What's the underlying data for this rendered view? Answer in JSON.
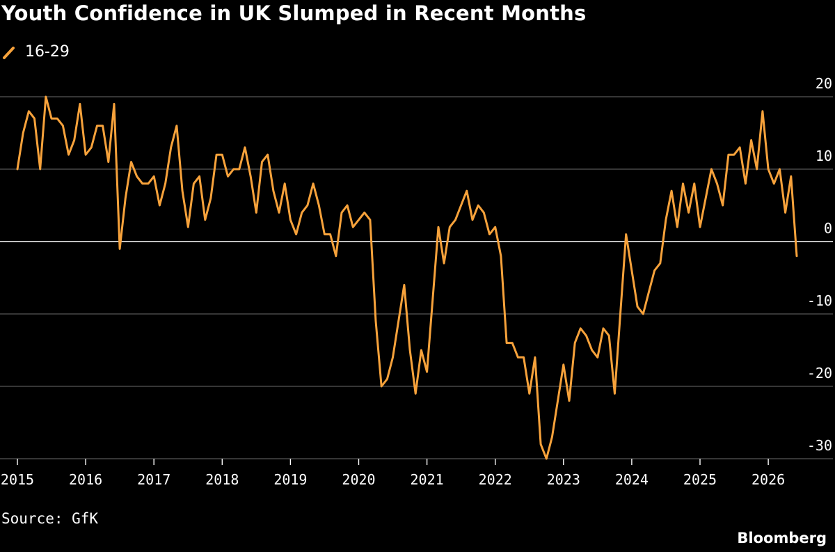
{
  "chart_data": {
    "type": "line",
    "title": "Youth Confidence in UK Slumped in Recent Months",
    "xlabel": "",
    "ylabel": "",
    "ylim": [
      -30,
      20
    ],
    "xlim": [
      2015,
      2026.75
    ],
    "y_ticks": [
      "20",
      "10",
      "0",
      "-10",
      "-20",
      "-30"
    ],
    "x_ticks": [
      "2015",
      "2016",
      "2017",
      "2018",
      "2019",
      "2020",
      "2021",
      "2022",
      "2023",
      "2024",
      "2025",
      "2026"
    ],
    "grid": true,
    "legend_position": "top-left",
    "line_color": "#f7a23b",
    "series": [
      {
        "name": "16-29",
        "values": [
          10,
          15,
          18,
          17,
          10,
          20,
          17,
          17,
          16,
          12,
          14,
          19,
          12,
          13,
          16,
          16,
          11,
          19,
          -1,
          6,
          11,
          9,
          8,
          8,
          9,
          5,
          8,
          13,
          16,
          7,
          2,
          8,
          9,
          3,
          6,
          12,
          12,
          9,
          10,
          10,
          13,
          9,
          4,
          11,
          12,
          7,
          4,
          8,
          3,
          1,
          4,
          5,
          8,
          5,
          1,
          1,
          -2,
          4,
          5,
          2,
          3,
          4,
          3,
          -11,
          -20,
          -19,
          -16,
          -11,
          -6,
          -15,
          -21,
          -15,
          -18,
          -8,
          2,
          -3,
          2,
          3,
          5,
          7,
          3,
          5,
          4,
          1,
          2,
          -2,
          -14,
          -14,
          -16,
          -16,
          -21,
          -16,
          -28,
          -30,
          -27,
          -22,
          -17,
          -22,
          -14,
          -12,
          -13,
          -15,
          -16,
          -12,
          -13,
          -21,
          -10,
          1,
          -4,
          -9,
          -10,
          -7,
          -4,
          -3,
          3,
          7,
          2,
          8,
          4,
          8,
          2,
          6,
          10,
          8,
          5,
          12,
          12,
          13,
          8,
          14,
          10,
          18,
          10,
          8,
          10,
          4,
          9,
          -2
        ]
      }
    ],
    "source": "Source: GfK",
    "brand": "Bloomberg"
  }
}
